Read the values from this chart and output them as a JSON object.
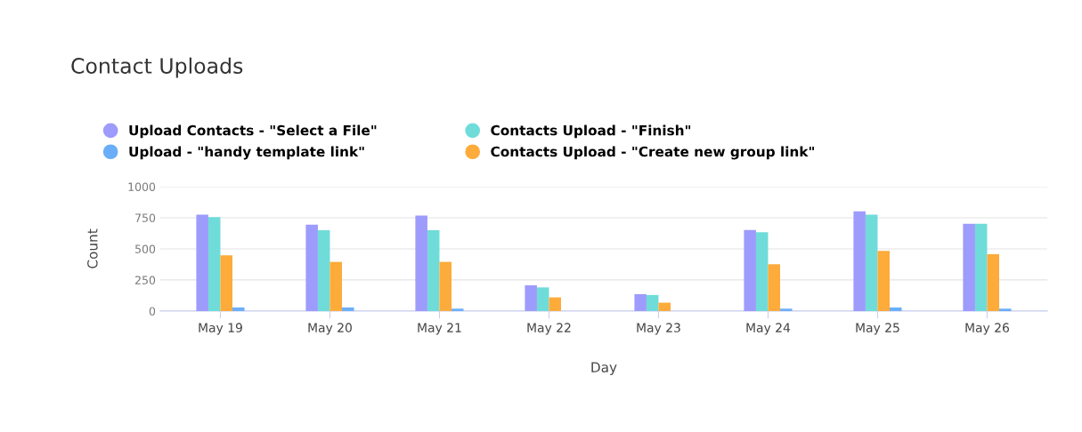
{
  "chart_data": {
    "type": "bar",
    "title": "Contact Uploads",
    "xlabel": "Day",
    "ylabel": "Count",
    "categories": [
      "May 19",
      "May 20",
      "May 21",
      "May 22",
      "May 23",
      "May 24",
      "May 25",
      "May 26"
    ],
    "series": [
      {
        "name": "Upload Contacts - \"Select a File\"",
        "color": "#9d9bfb",
        "values": [
          774,
          695,
          767,
          207,
          136,
          652,
          802,
          702
        ]
      },
      {
        "name": "Contacts Upload - \"Finish\"",
        "color": "#6fdcd9",
        "values": [
          755,
          650,
          650,
          190,
          129,
          633,
          774,
          702
        ]
      },
      {
        "name": "Contacts Upload - \"Create new group link\"",
        "color": "#fdab3a",
        "values": [
          448,
          395,
          395,
          110,
          67,
          376,
          483,
          457
        ]
      },
      {
        "name": "Upload - \"handy template link\"",
        "color": "#6aaefa",
        "values": [
          29,
          29,
          19,
          0,
          0,
          19,
          29,
          19
        ]
      }
    ],
    "ylim": [
      0,
      1000
    ],
    "yticks": [
      0,
      250,
      500,
      750,
      1000
    ],
    "grid": "y",
    "legend": "top left"
  }
}
